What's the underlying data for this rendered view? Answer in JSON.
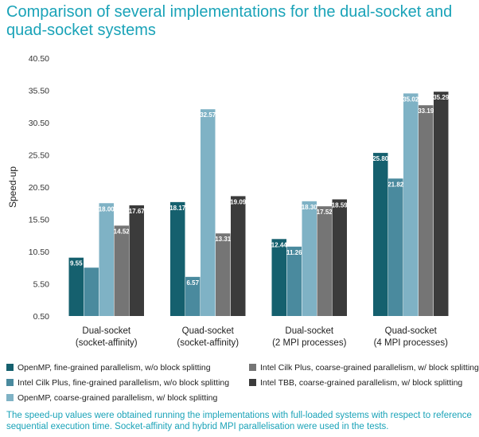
{
  "title": "Comparison of several implementations for the dual-socket and quad-socket systems",
  "footnote": "The speed-up values were obtained running the implementations with full-loaded systems with respect to reference sequential execution time. Socket-affinity and hybrid MPI parallelisation were used in the tests.",
  "chart_data": {
    "type": "bar",
    "ylabel": "Speed-up",
    "ylim": [
      0.5,
      40.5
    ],
    "yticks": [
      "0.50",
      "5.50",
      "10.50",
      "15.50",
      "20.50",
      "25.50",
      "30.50",
      "35.50",
      "40.50"
    ],
    "grid": false,
    "legend_position": "bottom",
    "categories": [
      [
        "Dual-socket",
        "(socket-affinity)"
      ],
      [
        "Quad-socket",
        "(socket-affinity)"
      ],
      [
        "Dual-socket",
        "(2 MPI processes)"
      ],
      [
        "Quad-socket",
        "(4 MPI processes)"
      ]
    ],
    "series": [
      {
        "name": "OpenMP, fine-grained parallelism, w/o block splitting",
        "color": "#15606e",
        "values": [
          9.55,
          18.17,
          12.44,
          25.8
        ],
        "labels": [
          "9.55",
          "18.17",
          "12.44",
          "25.80"
        ]
      },
      {
        "name": "Intel Cilk Plus, fine-grained parallelism, w/o block splitting",
        "color": "#4a8a9e",
        "values": [
          8.0,
          6.57,
          11.26,
          21.82
        ],
        "labels": [
          "",
          "6.57",
          "11.26",
          "21.82"
        ]
      },
      {
        "name": "OpenMP, coarse-grained parallelism, w/ block splitting",
        "color": "#7fb2c5",
        "values": [
          18.0,
          32.57,
          18.3,
          35.02
        ],
        "labels": [
          "18.00",
          "32.57",
          "18.30",
          "35.02"
        ]
      },
      {
        "name": "Intel Cilk Plus, coarse-grained parallelism, w/ block splitting",
        "color": "#757575",
        "values": [
          14.52,
          13.31,
          17.52,
          33.19
        ],
        "labels": [
          "14.52",
          "13.31",
          "17.52",
          "33.19"
        ]
      },
      {
        "name": "Intel TBB, coarse-grained parallelism, w/ block splitting",
        "color": "#3b3b3b",
        "values": [
          17.67,
          19.09,
          18.59,
          35.29
        ],
        "labels": [
          "17.67",
          "19.09",
          "18.59",
          "35.29"
        ]
      }
    ]
  }
}
